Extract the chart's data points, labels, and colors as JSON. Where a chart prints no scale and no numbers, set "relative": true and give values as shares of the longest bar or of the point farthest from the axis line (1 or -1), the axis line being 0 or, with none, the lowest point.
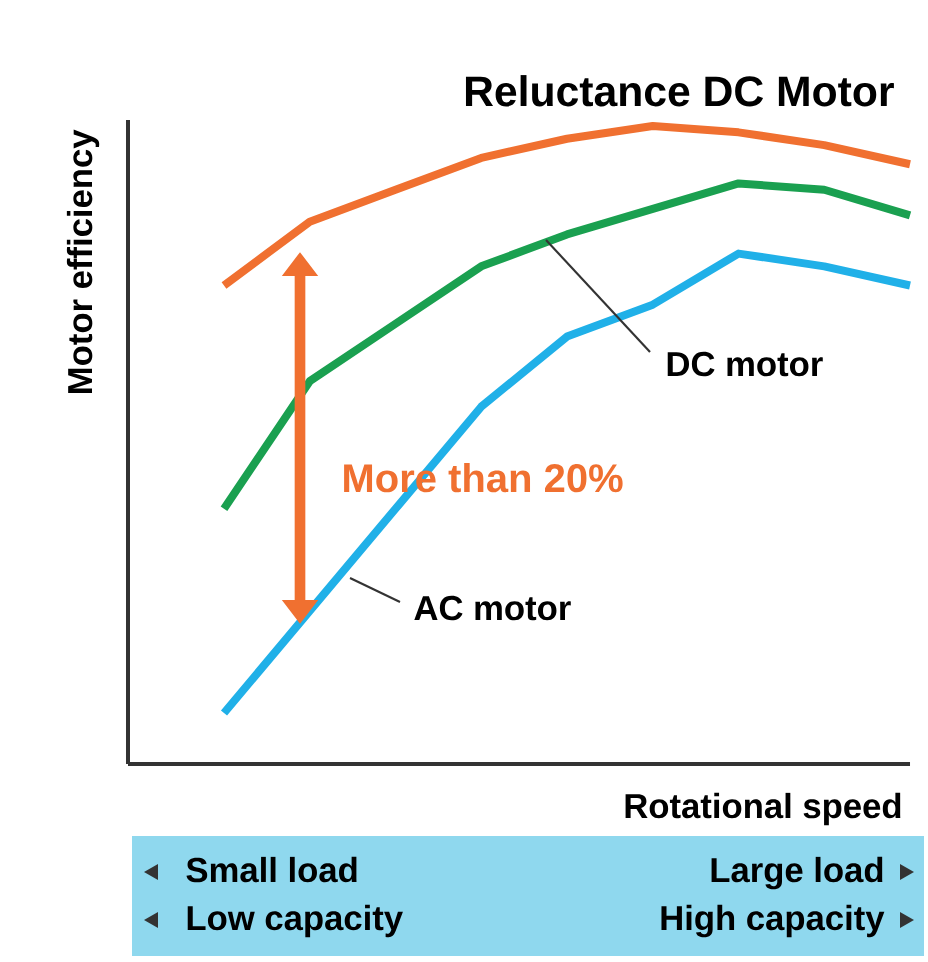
{
  "chart_data": {
    "type": "line",
    "title": "Reluctance DC Motor",
    "xlabel": "Rotational speed",
    "ylabel": "Motor efficiency",
    "relative": true,
    "categories": [
      null,
      null,
      null,
      null,
      null,
      null,
      null,
      null,
      null
    ],
    "series": [
      {
        "color": "#f07030",
        "values": [
          0.75,
          0.85,
          0.9,
          0.95,
          0.98,
          1.0,
          0.99,
          0.97,
          0.94
        ]
      },
      {
        "color": "#1aa050",
        "values": [
          0.4,
          0.6,
          0.69,
          0.78,
          0.83,
          0.87,
          0.91,
          0.9,
          0.86
        ]
      },
      {
        "color": "#20b0e8",
        "values": [
          0.08,
          0.24,
          0.4,
          0.56,
          0.67,
          0.72,
          0.8,
          0.78,
          0.75
        ]
      }
    ],
    "annotations": [
      "DC motor",
      "AC motor",
      "More than 20%",
      "Small load",
      "Large load",
      "Low capacity",
      "High capacity"
    ]
  }
}
